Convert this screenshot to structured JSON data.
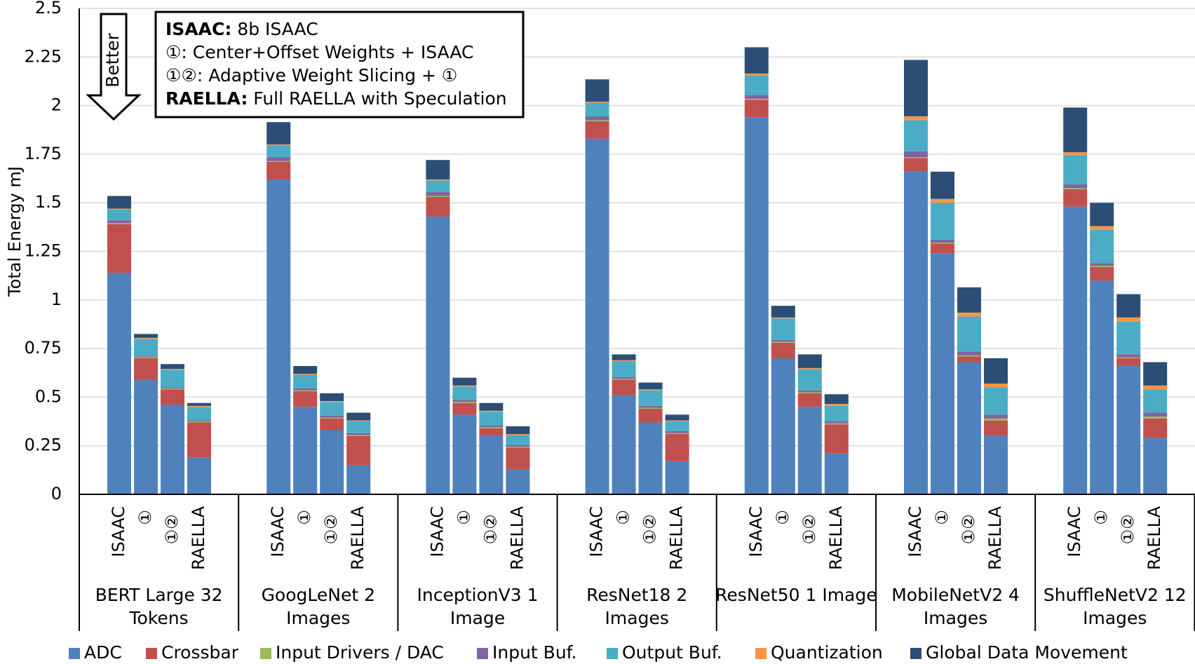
{
  "chart_data": {
    "type": "bar",
    "stacked": true,
    "ylabel": "Total Energy mJ",
    "ylim": [
      0,
      2.5
    ],
    "yticks": [
      "0",
      "0.25",
      "0.5",
      "0.75",
      "1",
      "1.25",
      "1.5",
      "1.75",
      "2",
      "2.25",
      "2.5"
    ],
    "grid": true,
    "bar_labels": [
      "ISAAC",
      "①",
      "①②",
      "RAELLA"
    ],
    "groups": [
      {
        "label": "BERT Large 32 Tokens",
        "label_lines": [
          "BERT Large 32",
          "Tokens"
        ]
      },
      {
        "label": "GoogLeNet 2 Images",
        "label_lines": [
          "GoogLeNet 2",
          "Images"
        ]
      },
      {
        "label": "InceptionV3 1 Image",
        "label_lines": [
          "InceptionV3 1",
          "Image"
        ]
      },
      {
        "label": "ResNet18 2 Images",
        "label_lines": [
          "ResNet18 2",
          "Images"
        ]
      },
      {
        "label": "ResNet50 1 Image",
        "label_lines": [
          "ResNet50 1 Image"
        ]
      },
      {
        "label": "MobileNetV2 4 Images",
        "label_lines": [
          "MobileNetV2 4",
          "Images"
        ]
      },
      {
        "label": "ShuffleNetV2 12 Images",
        "label_lines": [
          "ShuffleNetV2 12",
          "Images"
        ]
      }
    ],
    "series": [
      {
        "name": "ADC",
        "color": "#4f81bd",
        "values": [
          [
            1.14,
            0.59,
            0.46,
            0.19
          ],
          [
            1.62,
            0.45,
            0.33,
            0.15
          ],
          [
            1.43,
            0.41,
            0.3,
            0.13
          ],
          [
            1.83,
            0.51,
            0.37,
            0.17
          ],
          [
            1.94,
            0.7,
            0.45,
            0.21
          ],
          [
            1.66,
            1.24,
            0.68,
            0.3
          ],
          [
            1.48,
            1.1,
            0.66,
            0.29
          ]
        ]
      },
      {
        "name": "Crossbar",
        "color": "#c0504d",
        "values": [
          [
            0.25,
            0.11,
            0.08,
            0.18
          ],
          [
            0.09,
            0.08,
            0.06,
            0.15
          ],
          [
            0.1,
            0.06,
            0.04,
            0.11
          ],
          [
            0.09,
            0.08,
            0.07,
            0.14
          ],
          [
            0.09,
            0.08,
            0.07,
            0.15
          ],
          [
            0.07,
            0.05,
            0.03,
            0.08
          ],
          [
            0.09,
            0.07,
            0.04,
            0.1
          ]
        ]
      },
      {
        "name": "Input Drivers / DAC",
        "color": "#9bbb59",
        "values": [
          [
            0.005,
            0.005,
            0.005,
            0.005
          ],
          [
            0.005,
            0.005,
            0.005,
            0.005
          ],
          [
            0.005,
            0.005,
            0.005,
            0.005
          ],
          [
            0.005,
            0.005,
            0.005,
            0.005
          ],
          [
            0.005,
            0.005,
            0.005,
            0.005
          ],
          [
            0.005,
            0.005,
            0.005,
            0.01
          ],
          [
            0.005,
            0.005,
            0.005,
            0.01
          ]
        ]
      },
      {
        "name": "Input Buf.",
        "color": "#8064a2",
        "values": [
          [
            0.015,
            0.005,
            0.005,
            0.005
          ],
          [
            0.02,
            0.01,
            0.01,
            0.01
          ],
          [
            0.02,
            0.01,
            0.01,
            0.01
          ],
          [
            0.02,
            0.01,
            0.01,
            0.01
          ],
          [
            0.02,
            0.01,
            0.01,
            0.01
          ],
          [
            0.03,
            0.015,
            0.02,
            0.02
          ],
          [
            0.02,
            0.015,
            0.015,
            0.02
          ]
        ]
      },
      {
        "name": "Output Buf.",
        "color": "#4bacc6",
        "values": [
          [
            0.055,
            0.09,
            0.09,
            0.07
          ],
          [
            0.06,
            0.07,
            0.07,
            0.06
          ],
          [
            0.06,
            0.07,
            0.07,
            0.05
          ],
          [
            0.07,
            0.08,
            0.08,
            0.05
          ],
          [
            0.1,
            0.11,
            0.11,
            0.08
          ],
          [
            0.16,
            0.19,
            0.18,
            0.14
          ],
          [
            0.15,
            0.17,
            0.17,
            0.12
          ]
        ]
      },
      {
        "name": "Quantization",
        "color": "#f79646",
        "values": [
          [
            0.005,
            0.005,
            0.005,
            0.005
          ],
          [
            0.005,
            0.005,
            0.005,
            0.005
          ],
          [
            0.005,
            0.005,
            0.005,
            0.005
          ],
          [
            0.005,
            0.005,
            0.005,
            0.005
          ],
          [
            0.01,
            0.005,
            0.005,
            0.01
          ],
          [
            0.02,
            0.02,
            0.02,
            0.02
          ],
          [
            0.015,
            0.02,
            0.02,
            0.02
          ]
        ]
      },
      {
        "name": "Global Data Movement",
        "color": "#2c4d75",
        "values": [
          [
            0.065,
            0.02,
            0.025,
            0.015
          ],
          [
            0.115,
            0.04,
            0.04,
            0.04
          ],
          [
            0.1,
            0.04,
            0.04,
            0.04
          ],
          [
            0.115,
            0.03,
            0.035,
            0.03
          ],
          [
            0.135,
            0.06,
            0.07,
            0.05
          ],
          [
            0.29,
            0.14,
            0.13,
            0.13
          ],
          [
            0.23,
            0.12,
            0.12,
            0.12
          ]
        ]
      }
    ],
    "annotation": {
      "arrow_label": "Better",
      "note_lines": [
        {
          "bold": "ISAAC:",
          "text": " 8b ISAAC"
        },
        {
          "bold": "",
          "text": "①: Center+Offset Weights + ISAAC"
        },
        {
          "bold": "",
          "text": "①②: Adaptive Weight Slicing + ①"
        },
        {
          "bold": "RAELLA:",
          "text": " Full RAELLA with Speculation"
        }
      ]
    }
  }
}
